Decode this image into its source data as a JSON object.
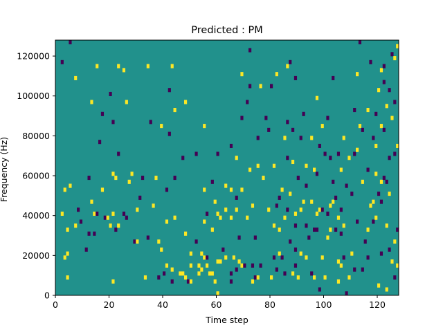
{
  "chart_data": {
    "type": "heatmap",
    "title": "Predicted : PM",
    "xlabel": "Time step",
    "ylabel": "Frequency (Hz)",
    "xlim": [
      0,
      128
    ],
    "ylim": [
      0,
      128000
    ],
    "xticks": [
      0,
      20,
      40,
      60,
      80,
      100,
      120
    ],
    "yticks": [
      0,
      20000,
      40000,
      60000,
      80000,
      100000,
      120000
    ],
    "ytick_labels": [
      "0",
      "20000",
      "40000",
      "60000",
      "80000",
      "100000",
      "120000"
    ],
    "grid": false,
    "legend": "none",
    "value_range": [
      -1,
      1
    ],
    "colors": {
      "background": "#21918c",
      "high": "#fde725",
      "low": "#440154",
      "axis": "#000000"
    },
    "n_time_steps": 128,
    "n_freq_bins": 64,
    "freq_bin_width_hz": 2000,
    "cells_note": "Non-zero cells: [time_step, freq_bin, value]; all other cells = 0",
    "cells": [
      [
        2,
        21,
        1
      ],
      [
        2,
        59,
        -1
      ],
      [
        3,
        27,
        1
      ],
      [
        3,
        10,
        1
      ],
      [
        4,
        17,
        1
      ],
      [
        4,
        11,
        1
      ],
      [
        4,
        5,
        1
      ],
      [
        5,
        28,
        1
      ],
      [
        5,
        64,
        -1
      ],
      [
        7,
        18,
        1
      ],
      [
        7,
        55,
        1
      ],
      [
        8,
        22,
        -1
      ],
      [
        9,
        19,
        -1
      ],
      [
        11,
        12,
        -1
      ],
      [
        12,
        16,
        -1
      ],
      [
        12,
        30,
        -1
      ],
      [
        13,
        24,
        1
      ],
      [
        13,
        49,
        1
      ],
      [
        14,
        16,
        -1
      ],
      [
        14,
        21,
        1
      ],
      [
        15,
        21,
        -1
      ],
      [
        15,
        58,
        1
      ],
      [
        16,
        39,
        -1
      ],
      [
        17,
        27,
        1
      ],
      [
        17,
        46,
        -1
      ],
      [
        18,
        20,
        -1
      ],
      [
        19,
        20,
        1
      ],
      [
        20,
        18,
        1
      ],
      [
        20,
        51,
        -1
      ],
      [
        21,
        4,
        1
      ],
      [
        21,
        31,
        1
      ],
      [
        21,
        44,
        -1
      ],
      [
        21,
        21,
        1
      ],
      [
        22,
        17,
        -1
      ],
      [
        22,
        30,
        1
      ],
      [
        23,
        18,
        1
      ],
      [
        23,
        36,
        -1
      ],
      [
        23,
        58,
        1
      ],
      [
        25,
        21,
        -1
      ],
      [
        25,
        57,
        1
      ],
      [
        26,
        20,
        -1
      ],
      [
        26,
        49,
        1
      ],
      [
        27,
        29,
        1
      ],
      [
        28,
        31,
        1
      ],
      [
        29,
        14,
        -1
      ],
      [
        30,
        14,
        1
      ],
      [
        30,
        22,
        1
      ],
      [
        31,
        25,
        -1
      ],
      [
        32,
        30,
        -1
      ],
      [
        33,
        5,
        1
      ],
      [
        34,
        15,
        -1
      ],
      [
        34,
        58,
        1
      ],
      [
        35,
        44,
        -1
      ],
      [
        36,
        23,
        1
      ],
      [
        37,
        30,
        1
      ],
      [
        38,
        5,
        -1
      ],
      [
        38,
        14,
        1
      ],
      [
        39,
        12,
        1
      ],
      [
        39,
        43,
        1
      ],
      [
        40,
        6,
        -1
      ],
      [
        41,
        8,
        1
      ],
      [
        41,
        19,
        1
      ],
      [
        41,
        27,
        -1
      ],
      [
        42,
        41,
        -1
      ],
      [
        42,
        52,
        -1
      ],
      [
        43,
        4,
        -1
      ],
      [
        43,
        7,
        1
      ],
      [
        43,
        58,
        1
      ],
      [
        44,
        20,
        1
      ],
      [
        44,
        30,
        -1
      ],
      [
        44,
        47,
        1
      ],
      [
        46,
        6,
        1
      ],
      [
        47,
        6,
        1
      ],
      [
        47,
        35,
        -1
      ],
      [
        48,
        5,
        1
      ],
      [
        48,
        16,
        1
      ],
      [
        48,
        49,
        1
      ],
      [
        49,
        4,
        -1
      ],
      [
        50,
        4,
        1
      ],
      [
        50,
        8,
        1
      ],
      [
        50,
        11,
        1
      ],
      [
        52,
        14,
        -1
      ],
      [
        52,
        36,
        -1
      ],
      [
        53,
        6,
        1
      ],
      [
        53,
        8,
        1
      ],
      [
        54,
        7,
        1
      ],
      [
        54,
        11,
        1
      ],
      [
        55,
        10,
        1
      ],
      [
        55,
        19,
        1
      ],
      [
        55,
        27,
        1
      ],
      [
        55,
        43,
        1
      ],
      [
        56,
        8,
        1
      ],
      [
        56,
        10,
        -1
      ],
      [
        56,
        21,
        -1
      ],
      [
        57,
        6,
        1
      ],
      [
        58,
        6,
        1
      ],
      [
        58,
        17,
        1
      ],
      [
        58,
        29,
        -1
      ],
      [
        59,
        4,
        1
      ],
      [
        59,
        24,
        1
      ],
      [
        60,
        1,
        1
      ],
      [
        60,
        9,
        1
      ],
      [
        60,
        21,
        1
      ],
      [
        60,
        36,
        -1
      ],
      [
        61,
        9,
        1
      ],
      [
        61,
        20,
        1
      ],
      [
        62,
        12,
        -1
      ],
      [
        63,
        10,
        1
      ],
      [
        63,
        22,
        1
      ],
      [
        63,
        28,
        1
      ],
      [
        65,
        4,
        -1
      ],
      [
        65,
        6,
        -1
      ],
      [
        65,
        20,
        1
      ],
      [
        65,
        27,
        1
      ],
      [
        65,
        38,
        -1
      ],
      [
        66,
        10,
        1
      ],
      [
        67,
        7,
        -1
      ],
      [
        67,
        22,
        1
      ],
      [
        67,
        25,
        -1
      ],
      [
        67,
        35,
        1
      ],
      [
        68,
        9,
        1
      ],
      [
        68,
        15,
        -1
      ],
      [
        69,
        8,
        1
      ],
      [
        69,
        27,
        1
      ],
      [
        69,
        45,
        -1
      ],
      [
        69,
        56,
        1
      ],
      [
        70,
        8,
        -1
      ],
      [
        71,
        20,
        1
      ],
      [
        71,
        49,
        -1
      ],
      [
        72,
        32,
        1
      ],
      [
        72,
        53,
        -1
      ],
      [
        72,
        62,
        -1
      ],
      [
        73,
        4,
        1
      ],
      [
        73,
        8,
        -1
      ],
      [
        73,
        23,
        1
      ],
      [
        74,
        5,
        -1
      ],
      [
        74,
        15,
        -1
      ],
      [
        75,
        5,
        1
      ],
      [
        75,
        33,
        1
      ],
      [
        75,
        40,
        -1
      ],
      [
        76,
        8,
        -1
      ],
      [
        76,
        53,
        1
      ],
      [
        77,
        30,
        1
      ],
      [
        78,
        45,
        -1
      ],
      [
        79,
        22,
        1
      ],
      [
        79,
        42,
        -1
      ],
      [
        80,
        5,
        1
      ],
      [
        80,
        53,
        -1
      ],
      [
        81,
        10,
        -1
      ],
      [
        81,
        18,
        1
      ],
      [
        81,
        33,
        1
      ],
      [
        82,
        7,
        -1
      ],
      [
        82,
        23,
        -1
      ],
      [
        82,
        56,
        1
      ],
      [
        83,
        11,
        1
      ],
      [
        83,
        17,
        1
      ],
      [
        83,
        25,
        -1
      ],
      [
        84,
        10,
        -1
      ],
      [
        84,
        27,
        1
      ],
      [
        85,
        6,
        -1
      ],
      [
        85,
        20,
        1
      ],
      [
        85,
        40,
        1
      ],
      [
        86,
        22,
        -1
      ],
      [
        86,
        35,
        -1
      ],
      [
        86,
        44,
        -1
      ],
      [
        86,
        58,
        1
      ],
      [
        87,
        14,
        -1
      ],
      [
        87,
        26,
        1
      ],
      [
        87,
        59,
        -1
      ],
      [
        88,
        6,
        1
      ],
      [
        88,
        34,
        1
      ],
      [
        88,
        42,
        -1
      ],
      [
        89,
        8,
        -1
      ],
      [
        89,
        12,
        -1
      ],
      [
        89,
        18,
        -1
      ],
      [
        89,
        21,
        1
      ],
      [
        89,
        55,
        -1
      ],
      [
        90,
        5,
        1
      ],
      [
        90,
        30,
        -1
      ],
      [
        91,
        11,
        1
      ],
      [
        91,
        22,
        1
      ],
      [
        91,
        40,
        -1
      ],
      [
        92,
        24,
        1
      ],
      [
        92,
        46,
        -1
      ],
      [
        93,
        10,
        1
      ],
      [
        93,
        18,
        -1
      ],
      [
        93,
        28,
        -1
      ],
      [
        93,
        33,
        1
      ],
      [
        94,
        15,
        -1
      ],
      [
        95,
        6,
        -1
      ],
      [
        95,
        24,
        1
      ],
      [
        95,
        40,
        1
      ],
      [
        96,
        5,
        1
      ],
      [
        96,
        17,
        -1
      ],
      [
        96,
        32,
        1
      ],
      [
        97,
        17,
        -1
      ],
      [
        97,
        21,
        1
      ],
      [
        97,
        31,
        -1
      ],
      [
        97,
        50,
        1
      ],
      [
        98,
        2,
        -1
      ],
      [
        98,
        22,
        1
      ],
      [
        98,
        38,
        -1
      ],
      [
        99,
        10,
        1
      ],
      [
        99,
        22,
        -1
      ],
      [
        99,
        43,
        1
      ],
      [
        100,
        5,
        1
      ],
      [
        100,
        36,
        -1
      ],
      [
        101,
        15,
        1
      ],
      [
        101,
        21,
        -1
      ],
      [
        101,
        45,
        -1
      ],
      [
        102,
        17,
        1
      ],
      [
        102,
        23,
        1
      ],
      [
        102,
        35,
        -1
      ],
      [
        103,
        24,
        1
      ],
      [
        103,
        29,
        -1
      ],
      [
        103,
        55,
        -1
      ],
      [
        104,
        17,
        -1
      ],
      [
        104,
        25,
        -1
      ],
      [
        105,
        4,
        1
      ],
      [
        105,
        9,
        1
      ],
      [
        105,
        20,
        1
      ],
      [
        105,
        36,
        -1
      ],
      [
        106,
        8,
        1
      ],
      [
        106,
        16,
        -1
      ],
      [
        106,
        22,
        -1
      ],
      [
        106,
        32,
        1
      ],
      [
        107,
        10,
        -1
      ],
      [
        107,
        18,
        1
      ],
      [
        107,
        40,
        1
      ],
      [
        108,
        1,
        -1
      ],
      [
        108,
        28,
        -1
      ],
      [
        109,
        5,
        1
      ],
      [
        109,
        35,
        1
      ],
      [
        110,
        11,
        1
      ],
      [
        110,
        26,
        -1
      ],
      [
        111,
        7,
        -1
      ],
      [
        111,
        36,
        -1
      ],
      [
        111,
        47,
        -1
      ],
      [
        112,
        19,
        -1
      ],
      [
        112,
        37,
        1
      ],
      [
        112,
        56,
        1
      ],
      [
        113,
        43,
        1
      ],
      [
        113,
        64,
        -1
      ],
      [
        114,
        7,
        -1
      ],
      [
        114,
        29,
        1
      ],
      [
        114,
        42,
        -1
      ],
      [
        115,
        14,
        -1
      ],
      [
        116,
        10,
        -1
      ],
      [
        116,
        17,
        1
      ],
      [
        116,
        32,
        -1
      ],
      [
        116,
        47,
        1
      ],
      [
        117,
        23,
        1
      ],
      [
        117,
        59,
        -1
      ],
      [
        118,
        19,
        -1
      ],
      [
        118,
        24,
        1
      ],
      [
        118,
        40,
        -1
      ],
      [
        119,
        20,
        1
      ],
      [
        119,
        31,
        1
      ],
      [
        119,
        38,
        1
      ],
      [
        119,
        46,
        -1
      ],
      [
        120,
        3,
        1
      ],
      [
        120,
        26,
        -1
      ],
      [
        120,
        52,
        1
      ],
      [
        121,
        11,
        -1
      ],
      [
        121,
        24,
        -1
      ],
      [
        121,
        29,
        1
      ],
      [
        121,
        43,
        1
      ],
      [
        121,
        57,
        1
      ],
      [
        122,
        30,
        -1
      ],
      [
        122,
        42,
        -1
      ],
      [
        122,
        54,
        -1
      ],
      [
        122,
        58,
        -1
      ],
      [
        123,
        2,
        1
      ],
      [
        123,
        18,
        1
      ],
      [
        123,
        29,
        -1
      ],
      [
        123,
        48,
        1
      ],
      [
        124,
        12,
        -1
      ],
      [
        124,
        26,
        1
      ],
      [
        124,
        35,
        -1
      ],
      [
        124,
        52,
        -1
      ],
      [
        125,
        9,
        1
      ],
      [
        125,
        45,
        1
      ],
      [
        125,
        61,
        -1
      ],
      [
        126,
        5,
        -1
      ],
      [
        126,
        14,
        1
      ],
      [
        126,
        36,
        -1
      ],
      [
        126,
        49,
        -1
      ],
      [
        126,
        60,
        1
      ],
      [
        127,
        8,
        1
      ],
      [
        127,
        17,
        -1
      ],
      [
        127,
        38,
        1
      ],
      [
        127,
        63,
        1
      ]
    ]
  }
}
